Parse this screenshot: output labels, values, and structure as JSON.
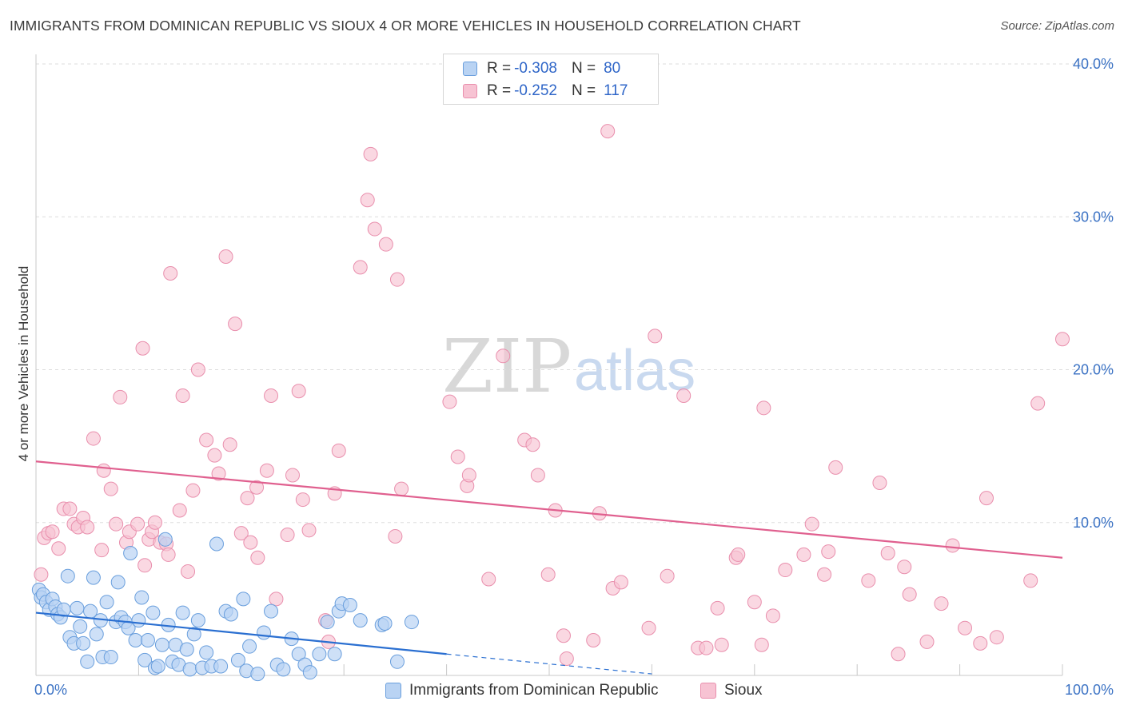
{
  "header": {
    "title": "IMMIGRANTS FROM DOMINICAN REPUBLIC VS SIOUX 4 OR MORE VEHICLES IN HOUSEHOLD CORRELATION CHART",
    "source": "Source: ZipAtlas.com"
  },
  "watermark": {
    "zip": "ZIP",
    "atlas": "atlas"
  },
  "legend": {
    "rows": [
      {
        "r_label": "R =",
        "r_value": "-0.308",
        "n_label": "N =",
        "n_value": "80"
      },
      {
        "r_label": "R =",
        "r_value": "-0.252",
        "n_label": "N =",
        "n_value": "117"
      }
    ]
  },
  "bottom_legend": {
    "series1": "Immigrants from Dominican Republic",
    "series2": "Sioux"
  },
  "colors": {
    "blue_fill": "#b9d3f3",
    "blue_stroke": "#6a9fdd",
    "blue_line": "#2a6fd1",
    "pink_fill": "#f7c3d3",
    "pink_stroke": "#e98fad",
    "pink_line": "#e0608f",
    "tick_text": "#3b72c4",
    "grid": "#dddddd"
  },
  "chart_data": {
    "type": "scatter",
    "title": "IMMIGRANTS FROM DOMINICAN REPUBLIC VS SIOUX 4 OR MORE VEHICLES IN HOUSEHOLD CORRELATION CHART",
    "xlabel": "",
    "ylabel": "4 or more Vehicles in Household",
    "x_unit": "percent",
    "xlim": [
      0,
      100
    ],
    "ylim": [
      0,
      40
    ],
    "x_tick_labels": [
      "0.0%",
      "100.0%"
    ],
    "y_ticks": [
      10,
      20,
      30,
      40
    ],
    "y_tick_labels": [
      "10.0%",
      "20.0%",
      "30.0%",
      "40.0%"
    ],
    "grid": true,
    "legend_position": "top-center",
    "series": [
      {
        "name": "Immigrants from Dominican Republic",
        "R": -0.308,
        "N": 80,
        "trend": {
          "x0": 0,
          "y0": 4.1,
          "x1": 40,
          "y1": 1.4,
          "dashed_to": {
            "x": 60,
            "y": 0.1
          }
        },
        "points": [
          [
            0.3,
            5.6
          ],
          [
            0.5,
            5.1
          ],
          [
            0.7,
            5.3
          ],
          [
            1.0,
            4.8
          ],
          [
            1.3,
            4.3
          ],
          [
            1.6,
            5.0
          ],
          [
            1.9,
            4.5
          ],
          [
            2.1,
            4.0
          ],
          [
            2.4,
            3.8
          ],
          [
            2.7,
            4.3
          ],
          [
            3.1,
            6.5
          ],
          [
            3.3,
            2.5
          ],
          [
            3.7,
            2.1
          ],
          [
            4.0,
            4.4
          ],
          [
            4.3,
            3.2
          ],
          [
            4.6,
            2.1
          ],
          [
            5.0,
            0.9
          ],
          [
            5.3,
            4.2
          ],
          [
            5.6,
            6.4
          ],
          [
            5.9,
            2.7
          ],
          [
            6.3,
            3.6
          ],
          [
            6.5,
            1.2
          ],
          [
            6.9,
            4.8
          ],
          [
            7.3,
            1.2
          ],
          [
            7.8,
            3.5
          ],
          [
            8.0,
            6.1
          ],
          [
            8.3,
            3.8
          ],
          [
            8.7,
            3.5
          ],
          [
            9.0,
            3.1
          ],
          [
            9.2,
            8.0
          ],
          [
            9.7,
            2.3
          ],
          [
            10.0,
            3.6
          ],
          [
            10.3,
            5.1
          ],
          [
            10.6,
            1.0
          ],
          [
            10.9,
            2.3
          ],
          [
            11.4,
            4.1
          ],
          [
            11.6,
            0.5
          ],
          [
            11.9,
            0.6
          ],
          [
            12.3,
            2.0
          ],
          [
            12.6,
            8.9
          ],
          [
            12.9,
            3.3
          ],
          [
            13.3,
            0.9
          ],
          [
            13.6,
            2.0
          ],
          [
            13.9,
            0.7
          ],
          [
            14.3,
            4.1
          ],
          [
            14.7,
            1.7
          ],
          [
            15.0,
            0.4
          ],
          [
            15.4,
            2.7
          ],
          [
            15.8,
            3.6
          ],
          [
            16.2,
            0.5
          ],
          [
            16.6,
            1.5
          ],
          [
            17.1,
            0.6
          ],
          [
            17.6,
            8.6
          ],
          [
            18.0,
            0.6
          ],
          [
            18.5,
            4.2
          ],
          [
            19.0,
            4.0
          ],
          [
            19.7,
            1.0
          ],
          [
            20.2,
            5.0
          ],
          [
            20.5,
            0.3
          ],
          [
            20.8,
            1.9
          ],
          [
            21.6,
            0.1
          ],
          [
            22.2,
            2.8
          ],
          [
            22.9,
            4.2
          ],
          [
            23.5,
            0.7
          ],
          [
            24.1,
            0.4
          ],
          [
            24.9,
            2.4
          ],
          [
            25.6,
            1.4
          ],
          [
            26.2,
            0.7
          ],
          [
            26.7,
            0.2
          ],
          [
            27.6,
            1.4
          ],
          [
            28.4,
            3.5
          ],
          [
            29.1,
            1.4
          ],
          [
            29.5,
            4.2
          ],
          [
            29.8,
            4.7
          ],
          [
            30.6,
            4.6
          ],
          [
            31.6,
            3.6
          ],
          [
            33.7,
            3.3
          ],
          [
            34.0,
            3.4
          ],
          [
            35.2,
            0.9
          ],
          [
            36.6,
            3.5
          ]
        ]
      },
      {
        "name": "Sioux",
        "R": -0.252,
        "N": 117,
        "trend": {
          "x0": 0,
          "y0": 14.0,
          "x1": 100,
          "y1": 7.7
        },
        "points": [
          [
            0.5,
            6.6
          ],
          [
            0.8,
            9.0
          ],
          [
            1.2,
            9.3
          ],
          [
            1.6,
            9.4
          ],
          [
            2.2,
            8.3
          ],
          [
            2.7,
            10.9
          ],
          [
            3.3,
            10.9
          ],
          [
            3.7,
            9.9
          ],
          [
            4.1,
            9.7
          ],
          [
            4.6,
            10.3
          ],
          [
            5.0,
            9.7
          ],
          [
            5.6,
            15.5
          ],
          [
            6.4,
            8.2
          ],
          [
            6.6,
            13.4
          ],
          [
            7.3,
            12.2
          ],
          [
            7.8,
            9.9
          ],
          [
            8.2,
            18.2
          ],
          [
            8.8,
            8.7
          ],
          [
            9.1,
            9.4
          ],
          [
            9.9,
            9.9
          ],
          [
            10.4,
            21.4
          ],
          [
            10.6,
            7.2
          ],
          [
            11.0,
            8.9
          ],
          [
            11.3,
            9.4
          ],
          [
            11.6,
            10.0
          ],
          [
            12.1,
            8.7
          ],
          [
            12.7,
            8.6
          ],
          [
            12.9,
            7.9
          ],
          [
            13.1,
            26.3
          ],
          [
            14.0,
            10.8
          ],
          [
            14.3,
            18.3
          ],
          [
            14.8,
            6.8
          ],
          [
            15.3,
            12.1
          ],
          [
            15.8,
            20.0
          ],
          [
            16.6,
            15.4
          ],
          [
            17.4,
            14.4
          ],
          [
            17.8,
            13.2
          ],
          [
            18.5,
            27.4
          ],
          [
            18.9,
            15.1
          ],
          [
            19.4,
            23.0
          ],
          [
            20.0,
            9.3
          ],
          [
            20.6,
            11.6
          ],
          [
            20.9,
            8.7
          ],
          [
            21.5,
            12.3
          ],
          [
            21.6,
            7.7
          ],
          [
            22.5,
            13.4
          ],
          [
            22.9,
            18.3
          ],
          [
            23.4,
            5.0
          ],
          [
            24.5,
            9.2
          ],
          [
            25.0,
            13.1
          ],
          [
            25.6,
            18.6
          ],
          [
            26.0,
            11.5
          ],
          [
            26.6,
            9.5
          ],
          [
            28.2,
            3.6
          ],
          [
            28.5,
            2.2
          ],
          [
            29.1,
            11.9
          ],
          [
            29.5,
            14.7
          ],
          [
            31.6,
            26.7
          ],
          [
            32.3,
            31.1
          ],
          [
            32.6,
            34.1
          ],
          [
            33.0,
            29.2
          ],
          [
            34.1,
            28.2
          ],
          [
            35.0,
            9.1
          ],
          [
            35.2,
            25.9
          ],
          [
            35.6,
            12.2
          ],
          [
            40.3,
            17.9
          ],
          [
            41.1,
            14.3
          ],
          [
            42.0,
            12.4
          ],
          [
            42.2,
            13.1
          ],
          [
            44.1,
            6.3
          ],
          [
            45.5,
            20.9
          ],
          [
            47.6,
            15.4
          ],
          [
            48.4,
            15.1
          ],
          [
            48.9,
            13.1
          ],
          [
            49.9,
            6.6
          ],
          [
            50.6,
            10.8
          ],
          [
            51.4,
            2.6
          ],
          [
            51.7,
            1.1
          ],
          [
            54.3,
            2.3
          ],
          [
            54.9,
            10.6
          ],
          [
            55.7,
            35.6
          ],
          [
            56.2,
            5.7
          ],
          [
            57.0,
            6.1
          ],
          [
            59.7,
            3.1
          ],
          [
            60.3,
            22.2
          ],
          [
            61.5,
            6.5
          ],
          [
            63.1,
            18.3
          ],
          [
            64.5,
            1.8
          ],
          [
            65.3,
            1.8
          ],
          [
            66.4,
            4.4
          ],
          [
            66.8,
            2.0
          ],
          [
            68.2,
            7.7
          ],
          [
            68.4,
            7.9
          ],
          [
            70.0,
            4.8
          ],
          [
            70.7,
            2.0
          ],
          [
            70.9,
            17.5
          ],
          [
            71.8,
            3.9
          ],
          [
            73.0,
            6.9
          ],
          [
            74.8,
            7.9
          ],
          [
            75.6,
            9.9
          ],
          [
            76.8,
            6.6
          ],
          [
            77.2,
            8.1
          ],
          [
            77.9,
            13.6
          ],
          [
            81.1,
            6.2
          ],
          [
            82.2,
            12.6
          ],
          [
            83.0,
            8.0
          ],
          [
            84.0,
            1.4
          ],
          [
            84.6,
            7.1
          ],
          [
            85.1,
            5.3
          ],
          [
            86.8,
            2.2
          ],
          [
            88.2,
            4.7
          ],
          [
            89.3,
            8.5
          ],
          [
            90.5,
            3.1
          ],
          [
            92.0,
            2.1
          ],
          [
            92.6,
            11.6
          ],
          [
            93.6,
            2.5
          ],
          [
            96.9,
            6.2
          ],
          [
            97.6,
            17.8
          ],
          [
            100.0,
            22.0
          ]
        ]
      }
    ]
  }
}
